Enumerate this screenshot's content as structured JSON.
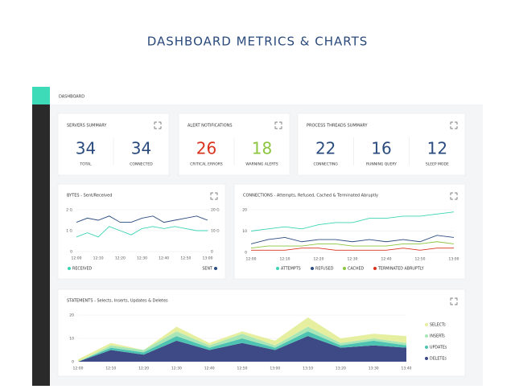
{
  "title": "DASHBOARD METRICS & CHARTS",
  "header": {
    "title": "DASHBOARD"
  },
  "summary_cards": [
    {
      "title": "SERVERS SUMMARY",
      "items": [
        {
          "value": 34,
          "label": "TOTAL",
          "color": "#2b4c7e"
        },
        {
          "value": 34,
          "label": "CONNECTED",
          "color": "#2b4c7e"
        }
      ]
    },
    {
      "title": "ALERT NOTIFICATIONS",
      "items": [
        {
          "value": 26,
          "label": "CRITICAL ERRORS",
          "color": "#d9331f"
        },
        {
          "value": 18,
          "label": "WARNING ALERTS",
          "color": "#8cc63f"
        }
      ]
    },
    {
      "title": "PROCESS THREADS SUMMARY",
      "items": [
        {
          "value": 22,
          "label": "CONNECTING",
          "color": "#2b4c7e"
        },
        {
          "value": 16,
          "label": "RUNNING QUERY",
          "color": "#2b4c7e"
        },
        {
          "value": 12,
          "label": "SLEEP MODE",
          "color": "#2b4c7e"
        }
      ]
    }
  ],
  "chart_data": [
    {
      "type": "line",
      "title": "BYTES - Sent/Received",
      "categories": [
        "12:00",
        null,
        "12:10",
        null,
        "12:20",
        null,
        "12:30",
        null,
        "12:40",
        null,
        "12:50",
        null,
        "13:00"
      ],
      "ylim": [
        0,
        2
      ],
      "yticks": [
        0,
        {
          "value": 1,
          "label": "1 G"
        },
        {
          "value": 2,
          "label": "2 G"
        }
      ],
      "y2lim": [
        0,
        20
      ],
      "y2ticks": [
        0,
        {
          "value": 10,
          "label": "10 G"
        },
        {
          "value": 20,
          "label": "20 G"
        }
      ],
      "grid": true,
      "series": [
        {
          "name": "RECEIVED",
          "color": "#3dd4b4",
          "values": [
            0.7,
            0.9,
            0.7,
            1.2,
            1.0,
            0.8,
            1.1,
            1.2,
            1.1,
            1.2,
            1.1,
            1.0,
            1.0
          ]
        },
        {
          "name": "SENT",
          "color": "#2b4c7e",
          "axis": "y2",
          "values": [
            14,
            16,
            15,
            17,
            14,
            14,
            16,
            17,
            14,
            15,
            16,
            17,
            15
          ]
        }
      ]
    },
    {
      "type": "line",
      "title": "CONNECTIONS - Attempts, Refused, Cached & Terminated Abruptly",
      "categories": [
        "12:00",
        null,
        "12:10",
        null,
        "12:20",
        null,
        "12:30",
        null,
        "12:40",
        null,
        "12:50",
        null,
        "13:00"
      ],
      "ylim": [
        0,
        20
      ],
      "yticks": [
        0,
        10,
        20
      ],
      "grid": true,
      "series": [
        {
          "name": "ATTEMPTS",
          "color": "#3dd4b4",
          "values": [
            10,
            11,
            12,
            11,
            13,
            14,
            14,
            16,
            16,
            17,
            17,
            18,
            19
          ]
        },
        {
          "name": "REFUSED",
          "color": "#2b4c7e",
          "values": [
            4,
            6,
            7,
            5,
            6,
            6,
            5,
            6,
            5,
            6,
            5,
            8,
            7
          ]
        },
        {
          "name": "CACHED",
          "color": "#8cc63f",
          "values": [
            2,
            3,
            3,
            3,
            4,
            4,
            3,
            3,
            3,
            4,
            4,
            5,
            4
          ]
        },
        {
          "name": "TERMINATED ABRUPTLY",
          "color": "#d9331f",
          "values": [
            1,
            1,
            1,
            2,
            2,
            1,
            1,
            1,
            1,
            2,
            1,
            2,
            2
          ]
        }
      ]
    },
    {
      "type": "stacked_area",
      "title": "STATEMENTS - Selects, Inserts, Updates & Deletes",
      "categories": [
        "12:00",
        "12:10",
        "12:20",
        "12:30",
        "12:40",
        "12:50",
        "13:00",
        "13:10",
        "13:20",
        "13:30",
        "13:40"
      ],
      "ylim": [
        0,
        20
      ],
      "yticks": [
        0,
        10,
        20
      ],
      "grid": true,
      "series": [
        {
          "name": "DELETEs",
          "color": "#3d4a85",
          "values": [
            0,
            5,
            3,
            9,
            5,
            8,
            5,
            11,
            6,
            7,
            6
          ]
        },
        {
          "name": "UPDATEs",
          "color": "#4ec3b2",
          "values": [
            0,
            1,
            1,
            2,
            1,
            2,
            1,
            2,
            1,
            2,
            1
          ]
        },
        {
          "name": "INSERTs",
          "color": "#a8e6b8",
          "values": [
            0,
            1,
            1,
            2,
            1,
            2,
            1,
            2,
            1,
            1,
            1
          ]
        },
        {
          "name": "SELECTs",
          "color": "#e6efa0",
          "values": [
            1,
            1,
            0,
            2,
            1,
            1,
            2,
            4,
            2,
            2,
            3
          ]
        }
      ]
    }
  ]
}
